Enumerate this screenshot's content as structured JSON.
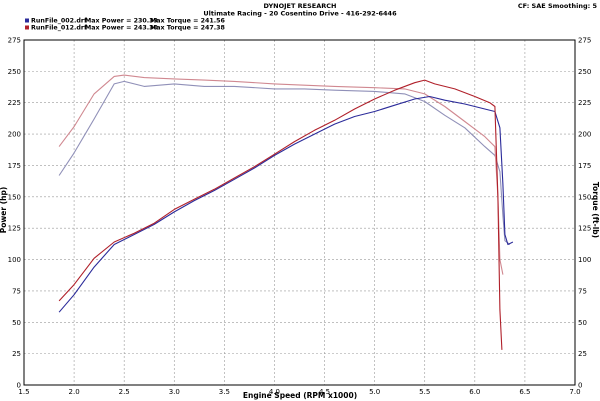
{
  "header": {
    "title": "DYNOJET RESEARCH",
    "subtitle": "Ultimate Racing - 20 Cosentino Drive - 416-292-6446",
    "settings": "CF: SAE  Smoothing: 5"
  },
  "legend": [
    {
      "run": "RunFile_002.drf",
      "max_power": "Max Power = 230.39",
      "max_torque": "Max Torque = 241.56",
      "color": "#2b2b9a"
    },
    {
      "run": "RunFile_012.drf",
      "max_power": "Max Power = 243.30",
      "max_torque": "Max Torque = 247.38",
      "color": "#b0202a"
    }
  ],
  "chart_data": {
    "type": "line",
    "xlabel": "Engine Speed (RPM x1000)",
    "ylabel_left": "Power (hp)",
    "ylabel_right": "Torque (ft-lb)",
    "xlim": [
      1.5,
      7.0
    ],
    "ylim": [
      0,
      275
    ],
    "x_ticks": [
      "1.5",
      "2.0",
      "2.5",
      "3.0",
      "3.5",
      "4.0",
      "4.5",
      "5.0",
      "5.5",
      "6.0",
      "6.5",
      "7.0"
    ],
    "y_ticks": [
      "0",
      "25",
      "50",
      "75",
      "100",
      "125",
      "150",
      "175",
      "200",
      "225",
      "250",
      "275"
    ],
    "grid": true,
    "series": [
      {
        "name": "RunFile_002.drf",
        "kind": "power",
        "color": "#2b2b9a",
        "points": [
          [
            1.85,
            58
          ],
          [
            2.0,
            72
          ],
          [
            2.2,
            94
          ],
          [
            2.4,
            112
          ],
          [
            2.6,
            120
          ],
          [
            2.8,
            128
          ],
          [
            3.0,
            138
          ],
          [
            3.2,
            147
          ],
          [
            3.4,
            155
          ],
          [
            3.6,
            164
          ],
          [
            3.8,
            173
          ],
          [
            4.0,
            183
          ],
          [
            4.2,
            192
          ],
          [
            4.4,
            200
          ],
          [
            4.6,
            208
          ],
          [
            4.8,
            214
          ],
          [
            5.0,
            218
          ],
          [
            5.2,
            223
          ],
          [
            5.4,
            228
          ],
          [
            5.55,
            230
          ],
          [
            5.7,
            227
          ],
          [
            5.9,
            224
          ],
          [
            6.1,
            220
          ],
          [
            6.2,
            218
          ],
          [
            6.25,
            205
          ],
          [
            6.28,
            160
          ],
          [
            6.3,
            120
          ],
          [
            6.33,
            112
          ],
          [
            6.38,
            114
          ]
        ]
      },
      {
        "name": "RunFile_012.drf",
        "kind": "power",
        "color": "#b0202a",
        "points": [
          [
            1.85,
            67
          ],
          [
            2.0,
            80
          ],
          [
            2.2,
            101
          ],
          [
            2.4,
            114
          ],
          [
            2.6,
            121
          ],
          [
            2.8,
            129
          ],
          [
            3.0,
            140
          ],
          [
            3.2,
            148
          ],
          [
            3.4,
            156
          ],
          [
            3.6,
            165
          ],
          [
            3.8,
            174
          ],
          [
            4.0,
            184
          ],
          [
            4.2,
            194
          ],
          [
            4.4,
            203
          ],
          [
            4.6,
            211
          ],
          [
            4.8,
            220
          ],
          [
            5.0,
            228
          ],
          [
            5.2,
            235
          ],
          [
            5.4,
            241
          ],
          [
            5.5,
            243
          ],
          [
            5.6,
            240
          ],
          [
            5.8,
            236
          ],
          [
            6.0,
            230
          ],
          [
            6.15,
            225
          ],
          [
            6.2,
            222
          ],
          [
            6.23,
            150
          ],
          [
            6.25,
            60
          ],
          [
            6.27,
            28
          ]
        ]
      },
      {
        "name": "RunFile_002.drf",
        "kind": "torque",
        "color": "#9090b8",
        "points": [
          [
            1.85,
            167
          ],
          [
            2.0,
            185
          ],
          [
            2.2,
            212
          ],
          [
            2.4,
            240
          ],
          [
            2.5,
            242
          ],
          [
            2.7,
            238
          ],
          [
            3.0,
            240
          ],
          [
            3.3,
            238
          ],
          [
            3.6,
            238
          ],
          [
            4.0,
            236
          ],
          [
            4.3,
            236
          ],
          [
            4.6,
            235
          ],
          [
            5.0,
            234
          ],
          [
            5.3,
            232
          ],
          [
            5.5,
            226
          ],
          [
            5.7,
            215
          ],
          [
            5.9,
            205
          ],
          [
            6.1,
            190
          ],
          [
            6.2,
            183
          ],
          [
            6.25,
            170
          ],
          [
            6.28,
            135
          ],
          [
            6.3,
            115
          ],
          [
            6.35,
            112
          ]
        ]
      },
      {
        "name": "RunFile_012.drf",
        "kind": "torque",
        "color": "#d08890",
        "points": [
          [
            1.85,
            190
          ],
          [
            2.0,
            206
          ],
          [
            2.2,
            232
          ],
          [
            2.4,
            246
          ],
          [
            2.5,
            247
          ],
          [
            2.7,
            245
          ],
          [
            3.0,
            244
          ],
          [
            3.3,
            243
          ],
          [
            3.6,
            242
          ],
          [
            4.0,
            240
          ],
          [
            4.3,
            239
          ],
          [
            4.6,
            238
          ],
          [
            5.0,
            237
          ],
          [
            5.3,
            236
          ],
          [
            5.5,
            232
          ],
          [
            5.7,
            222
          ],
          [
            5.9,
            210
          ],
          [
            6.1,
            198
          ],
          [
            6.2,
            190
          ],
          [
            6.23,
            150
          ],
          [
            6.25,
            100
          ],
          [
            6.28,
            88
          ]
        ]
      }
    ]
  }
}
